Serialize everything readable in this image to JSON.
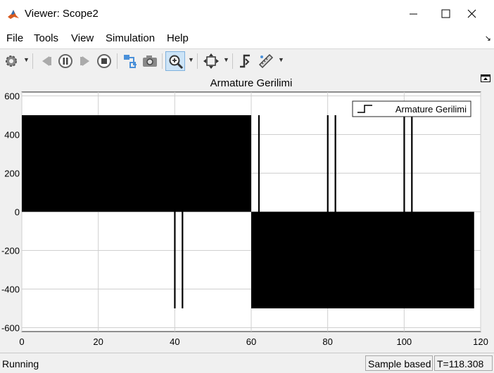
{
  "window": {
    "title": "Viewer: Scope2"
  },
  "menu": [
    "File",
    "Tools",
    "View",
    "Simulation",
    "Help"
  ],
  "toolbar": {
    "icons": [
      "settings-icon",
      "step-back-icon",
      "pause-icon",
      "step-forward-icon",
      "stop-icon",
      "highlight-simulink-block-icon",
      "snapshot-icon",
      "zoom-in-icon",
      "autoscale-icon",
      "triggers-icon",
      "measurements-icon"
    ]
  },
  "status": {
    "state": "Running",
    "mode": "Sample based",
    "time": "T=118.308"
  },
  "chart_data": {
    "type": "line",
    "title": "Armature Gerilimi",
    "xlabel": "",
    "ylabel": "",
    "xlim": [
      0,
      120
    ],
    "ylim": [
      -620,
      620
    ],
    "xticks": [
      "0",
      "20",
      "40",
      "60",
      "80",
      "100",
      "120"
    ],
    "yticks": [
      "600",
      "400",
      "200",
      "0",
      "-200",
      "-400",
      "-600"
    ],
    "grid": true,
    "legend_position": "top-right",
    "line_color": "#000000",
    "background": "#ffffff",
    "series": [
      {
        "name": "Armature Gerilimi",
        "description_segments": [
          {
            "x_start": 0,
            "x_end": 60,
            "low": 0,
            "high": 500
          },
          {
            "x_start": 60,
            "x_end": 118.3,
            "low": -500,
            "high": 0
          }
        ],
        "spikes": [
          {
            "x": 40,
            "from": 0,
            "to": -500
          },
          {
            "x": 42,
            "from": 0,
            "to": -500
          },
          {
            "x": 62,
            "from": 0,
            "to": 500
          },
          {
            "x": 80,
            "from": 0,
            "to": 500
          },
          {
            "x": 82,
            "from": 0,
            "to": 500
          },
          {
            "x": 100,
            "from": 0,
            "to": 500
          },
          {
            "x": 102,
            "from": 0,
            "to": 500
          }
        ]
      }
    ]
  }
}
